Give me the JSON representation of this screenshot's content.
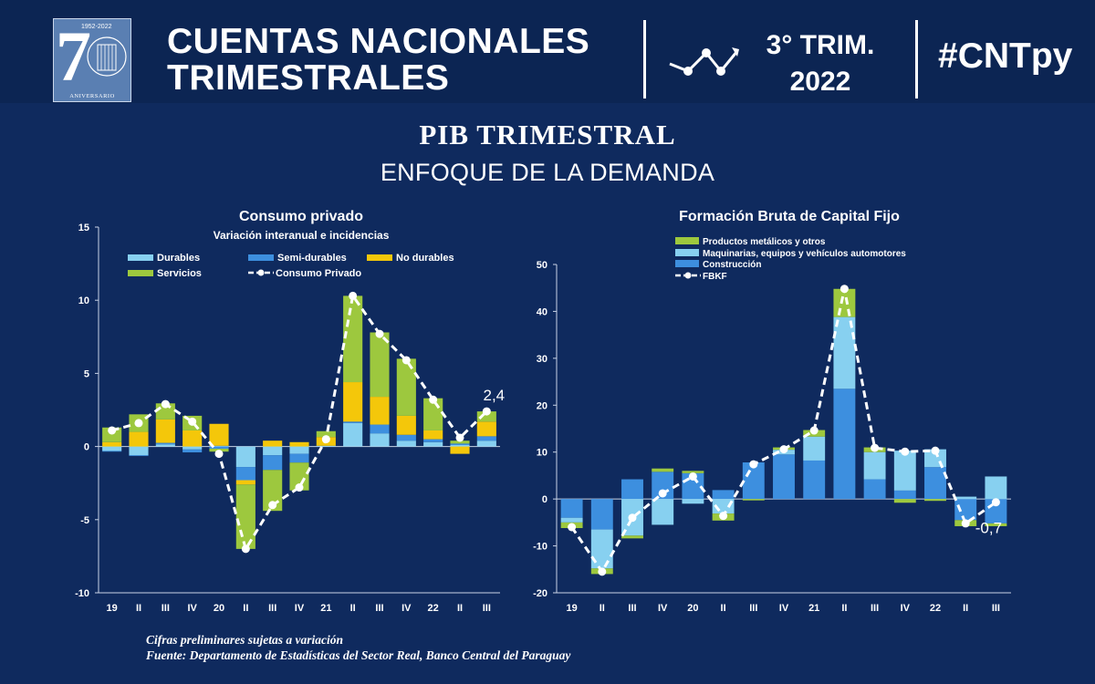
{
  "header": {
    "logo": {
      "digit": "7",
      "years": "1952-2022",
      "anniversary": "ANIVERSARIO",
      "icon": "bcp-building-icon"
    },
    "title_line1": "CUENTAS NACIONALES",
    "title_line2": "TRIMESTRALES",
    "trend_icon": "trend-line-icon",
    "period_line1": "3° TRIM.",
    "period_line2": "2022",
    "hashtag": "#CNTpy"
  },
  "main_title": "PIB TRIMESTRAL",
  "main_subtitle": "ENFOQUE DE LA DEMANDA",
  "colors": {
    "light_blue": "#87d0f0",
    "blue": "#3d8fdf",
    "yellow": "#f4c70a",
    "green": "#9dc83e",
    "bg": "#0f2a5e"
  },
  "chart_data": [
    {
      "type": "bar",
      "stacked": true,
      "title": "Consumo privado",
      "subtitle": "Variación interanual e incidencias",
      "categories": [
        "19",
        "II",
        "III",
        "IV",
        "20",
        "II",
        "III",
        "IV",
        "21",
        "II",
        "III",
        "IV",
        "22",
        "II",
        "III"
      ],
      "ylim": [
        -10,
        15
      ],
      "yticks": [
        -10,
        -5,
        0,
        5,
        10,
        15
      ],
      "legend_placement": "top",
      "series": [
        {
          "name": "Durables",
          "color": "#87d0f0",
          "values": [
            -0.3,
            -0.6,
            0.15,
            -0.2,
            0.05,
            -1.4,
            -0.6,
            -0.5,
            0.05,
            1.6,
            0.9,
            0.4,
            0.3,
            0.1,
            0.4
          ]
        },
        {
          "name": "Semi-durables",
          "color": "#3d8fdf",
          "values": [
            -0.05,
            -0.05,
            0.1,
            -0.2,
            -0.15,
            -0.9,
            -1.0,
            -0.6,
            0.0,
            0.1,
            0.6,
            0.4,
            0.2,
            0.1,
            0.3
          ]
        },
        {
          "name": "No durables",
          "color": "#f4c70a",
          "values": [
            0.3,
            1.0,
            1.6,
            1.1,
            1.5,
            -0.3,
            0.4,
            0.3,
            0.6,
            2.7,
            1.9,
            1.3,
            0.6,
            -0.5,
            1.0
          ]
        },
        {
          "name": "Servicios",
          "color": "#9dc83e",
          "values": [
            1.0,
            1.2,
            1.1,
            1.0,
            -0.2,
            -4.4,
            -2.8,
            -1.9,
            0.4,
            5.9,
            4.4,
            3.9,
            2.2,
            0.2,
            0.7
          ]
        }
      ],
      "line": {
        "name": "Consumo Privado",
        "values": [
          1.1,
          1.6,
          2.9,
          1.7,
          -0.5,
          -7.0,
          -4.0,
          -2.8,
          0.5,
          10.3,
          7.7,
          5.9,
          3.2,
          0.6,
          2.4
        ]
      },
      "annotation": {
        "text": "2,4",
        "index": 14
      }
    },
    {
      "type": "bar",
      "stacked": true,
      "title": "Formación Bruta de Capital Fijo",
      "categories": [
        "19",
        "II",
        "III",
        "IV",
        "20",
        "II",
        "III",
        "IV",
        "21",
        "II",
        "III",
        "IV",
        "22",
        "II",
        "III"
      ],
      "ylim": [
        -20,
        50
      ],
      "yticks": [
        -20,
        -10,
        0,
        10,
        20,
        30,
        40,
        50
      ],
      "legend_placement": "top-left",
      "series": [
        {
          "name": "Construcción",
          "color": "#3d8fdf",
          "values": [
            -4.0,
            -6.5,
            4.2,
            5.8,
            5.5,
            1.9,
            7.8,
            9.5,
            8.2,
            23.5,
            4.2,
            1.8,
            6.8,
            -4.5,
            -5.2
          ]
        },
        {
          "name": "Maquinarias, equipos y vehículos automotores",
          "color": "#87d0f0",
          "values": [
            -1.0,
            -8.3,
            -7.8,
            -5.5,
            -1.0,
            -3.1,
            0.0,
            1.0,
            5.1,
            15.3,
            5.8,
            8.5,
            3.8,
            0.5,
            4.8
          ]
        },
        {
          "name": "Productos metálicos y otros",
          "color": "#9dc83e",
          "values": [
            -1.2,
            -1.2,
            -0.6,
            0.7,
            0.5,
            -1.5,
            -0.3,
            0.5,
            1.4,
            6.0,
            1.0,
            -0.8,
            -0.4,
            -1.3,
            -0.6
          ]
        }
      ],
      "line": {
        "name": "FBKF",
        "values": [
          -6.0,
          -15.5,
          -4.0,
          1.2,
          4.8,
          -3.6,
          7.4,
          10.6,
          14.6,
          44.8,
          10.9,
          10.1,
          10.3,
          -5.2,
          -0.7
        ]
      },
      "annotation": {
        "text": "-0,7",
        "index": 14
      }
    }
  ],
  "notes": {
    "line1": "Cifras preliminares sujetas a variación",
    "line2": "Fuente: Departamento de Estadísticas del Sector Real, Banco Central del Paraguay"
  }
}
